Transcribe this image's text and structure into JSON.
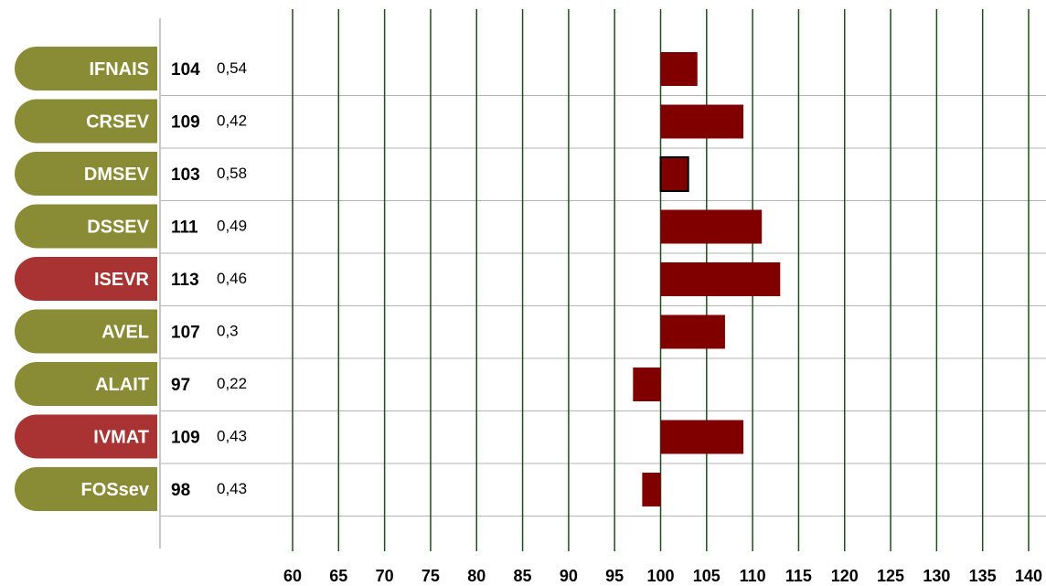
{
  "chart_data": {
    "type": "bar",
    "orientation": "horizontal",
    "baseline": 100,
    "xlim": [
      60,
      140
    ],
    "xticks": [
      60,
      65,
      70,
      75,
      80,
      85,
      90,
      95,
      100,
      105,
      110,
      115,
      120,
      125,
      130,
      135,
      140
    ],
    "grid": true,
    "rows": [
      {
        "label": "IFNAIS",
        "value": 104,
        "reliability": "0,54",
        "highlight": false,
        "outlined": false
      },
      {
        "label": "CRSEV",
        "value": 109,
        "reliability": "0,42",
        "highlight": false,
        "outlined": false
      },
      {
        "label": "DMSEV",
        "value": 103,
        "reliability": "0,58",
        "highlight": false,
        "outlined": true
      },
      {
        "label": "DSSEV",
        "value": 111,
        "reliability": "0,49",
        "highlight": false,
        "outlined": false
      },
      {
        "label": "ISEVR",
        "value": 113,
        "reliability": "0,46",
        "highlight": true,
        "outlined": false
      },
      {
        "label": "AVEL",
        "value": 107,
        "reliability": "0,3",
        "highlight": false,
        "outlined": false
      },
      {
        "label": "ALAIT",
        "value": 97,
        "reliability": "0,22",
        "highlight": false,
        "outlined": false
      },
      {
        "label": "IVMAT",
        "value": 109,
        "reliability": "0,43",
        "highlight": true,
        "outlined": false
      },
      {
        "label": "FOSsev",
        "value": 98,
        "reliability": "0,43",
        "highlight": false,
        "outlined": false
      }
    ]
  },
  "colors": {
    "bar": "#800000",
    "pill_default": "#8a8b35",
    "pill_highlight": "#a83332",
    "vertical_grid": "#1f4d1f",
    "horizontal_grid": "#b5b5b5",
    "left_axis": "#c8c8c8"
  }
}
